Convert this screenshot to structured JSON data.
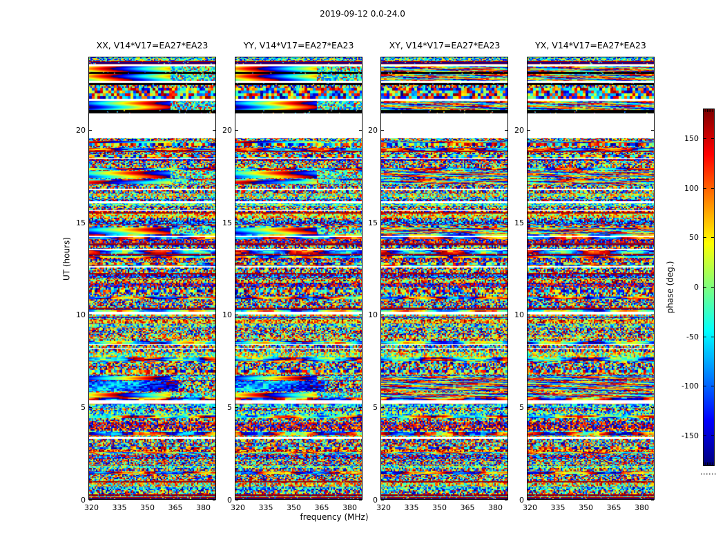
{
  "figure": {
    "background": "#ffffff",
    "frame_color": "#000000"
  },
  "chart_data": {
    "type": "heatmap",
    "title": "2019-09-12 0.0-24.0",
    "xlabel": "frequency (MHz)",
    "ylabel": "UT (hours)",
    "xlim": [
      318.3,
      386.7
    ],
    "ylim": [
      0.0,
      24.0
    ],
    "xticks": [
      320,
      335,
      350,
      365,
      380
    ],
    "yticks": [
      0,
      5,
      10,
      15,
      20
    ],
    "grid": false,
    "panels": [
      {
        "title": "XX, V14*V17=EA27*EA23",
        "pol": "XX",
        "baseline": "V14*V17=EA27*EA23",
        "has_smooth_phase_bands": true
      },
      {
        "title": "YY, V14*V17=EA27*EA23",
        "pol": "YY",
        "baseline": "V14*V17=EA27*EA23",
        "has_smooth_phase_bands": true
      },
      {
        "title": "XY, V14*V17=EA27*EA23",
        "pol": "XY",
        "baseline": "V14*V17=EA27*EA23",
        "has_smooth_phase_bands": false
      },
      {
        "title": "YX, V14*V17=EA27*EA23",
        "pol": "YX",
        "baseline": "V14*V17=EA27*EA23",
        "has_smooth_phase_bands": false
      }
    ],
    "colorbar": {
      "label": "phase (deg.)",
      "ticks": [
        150,
        100,
        50,
        0,
        -50,
        -100,
        -150
      ],
      "vmin": -180,
      "vmax": 180,
      "colormap": "jet"
    },
    "data_description": "dense per-channel visibility phase (random -180..180 deg noise) vs frequency and UT time; horizontal band structure identical across the four polarization panels; smooth phase-wrap rainbow bands appear only in XX and YY",
    "gaps_ut_hours": [
      [
        19.58,
        20.93
      ]
    ],
    "seed": 20190912,
    "features": [
      {
        "t0": 23.59,
        "t1": 23.76,
        "kind": "dark",
        "panels": "all"
      },
      {
        "t0": 23.48,
        "t1": 23.59,
        "kind": "white",
        "panels": "all"
      },
      {
        "t0": 23.16,
        "t1": 23.48,
        "kind": "smooth",
        "panels": "xxyy",
        "cycles": 1.5,
        "phase": 0.62
      },
      {
        "t0": 23.05,
        "t1": 23.16,
        "kind": "black",
        "panels": "all"
      },
      {
        "t0": 22.68,
        "t1": 23.05,
        "kind": "smooth",
        "panels": "xxyy",
        "cycles": 1.55,
        "phase": 0.6
      },
      {
        "t0": 22.57,
        "t1": 22.68,
        "kind": "white",
        "panels": "all"
      },
      {
        "t0": 22.46,
        "t1": 22.57,
        "kind": "black",
        "panels": "all"
      },
      {
        "t0": 22.32,
        "t1": 22.46,
        "kind": "noise",
        "panels": "all"
      },
      {
        "t0": 21.72,
        "t1": 22.32,
        "kind": "coarse",
        "panels": "all"
      },
      {
        "t0": 21.61,
        "t1": 21.72,
        "kind": "white",
        "panels": "all"
      },
      {
        "t0": 21.1,
        "t1": 21.61,
        "kind": "smooth",
        "panels": "xxyy",
        "cycles": 1.45,
        "phase": 0.12
      },
      {
        "t0": 20.93,
        "t1": 21.1,
        "kind": "black",
        "panels": "all"
      },
      {
        "t0": 19.58,
        "t1": 20.93,
        "kind": "white",
        "panels": "all"
      },
      {
        "t0": 19.3,
        "t1": 19.44,
        "kind": "smooth",
        "panels": "xxyy",
        "cycles": 1.2,
        "phase": 0.8
      },
      {
        "t0": 17.4,
        "t1": 17.82,
        "kind": "smooth",
        "panels": "xxyy",
        "cycles": 1.35,
        "phase": 0.3
      },
      {
        "t0": 17.08,
        "t1": 17.3,
        "kind": "smooth",
        "panels": "xxyy",
        "cycles": 1.15,
        "phase": 0.75
      },
      {
        "t0": 16.05,
        "t1": 16.16,
        "kind": "white",
        "panels": "all"
      },
      {
        "t0": 14.35,
        "t1": 14.72,
        "kind": "smooth",
        "panels": "xxyy",
        "cycles": 1.3,
        "phase": 0.18
      },
      {
        "t0": 12.55,
        "t1": 12.64,
        "kind": "white",
        "panels": "all"
      },
      {
        "t0": 10.02,
        "t1": 10.18,
        "kind": "white",
        "panels": "all"
      },
      {
        "t0": 6.45,
        "t1": 6.68,
        "kind": "smooth",
        "panels": "xxyy",
        "cycles": 1.6,
        "phase": 0.05
      },
      {
        "t0": 5.85,
        "t1": 6.42,
        "kind": "blob",
        "panels": "xxyy"
      },
      {
        "t0": 5.52,
        "t1": 5.78,
        "kind": "smooth",
        "panels": "xxyy",
        "cycles": 1.7,
        "phase": 0.5
      },
      {
        "t0": 5.18,
        "t1": 5.36,
        "kind": "white",
        "panels": "all"
      },
      {
        "t0": 3.28,
        "t1": 3.38,
        "kind": "white",
        "panels": "all"
      },
      {
        "t0": 0.0,
        "t1": 0.1,
        "kind": "dark",
        "panels": "all"
      }
    ]
  }
}
